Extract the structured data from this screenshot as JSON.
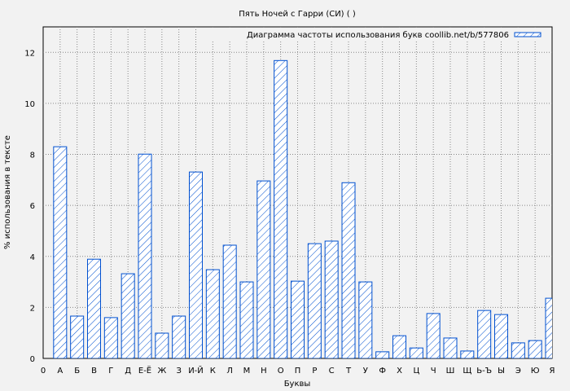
{
  "chart_data": {
    "type": "bar",
    "title": "Пять Ночей с Гарри (СИ) ( )",
    "xlabel": "Буквы",
    "ylabel": "% использования в тексте",
    "legend": {
      "label": "Диаграмма частоты использования букв coollib.net/b/577806",
      "position": "top-right"
    },
    "x_ticks": [
      "0",
      "А",
      "Б",
      "В",
      "Г",
      "Д",
      "Е-Ё",
      "Ж",
      "З",
      "И-Й",
      "К",
      "Л",
      "М",
      "Н",
      "О",
      "П",
      "Р",
      "С",
      "Т",
      "У",
      "Ф",
      "Х",
      "Ц",
      "Ч",
      "Ш",
      "Щ",
      "Ь-Ъ",
      "Ы",
      "Э",
      "Ю",
      "Я"
    ],
    "categories": [
      "А",
      "Б",
      "В",
      "Г",
      "Д",
      "Е-Ё",
      "Ж",
      "З",
      "И-Й",
      "К",
      "Л",
      "М",
      "Н",
      "О",
      "П",
      "Р",
      "С",
      "Т",
      "У",
      "Ф",
      "Х",
      "Ц",
      "Ч",
      "Ш",
      "Щ",
      "Ь-Ъ",
      "Ы",
      "Э",
      "Ю",
      "Я"
    ],
    "values": [
      8.3,
      1.66,
      3.89,
      1.6,
      3.32,
      8.01,
      0.99,
      1.66,
      7.31,
      3.48,
      4.44,
      3.0,
      6.96,
      11.68,
      3.03,
      4.5,
      4.6,
      6.89,
      3.0,
      0.26,
      0.89,
      0.41,
      1.76,
      0.8,
      0.29,
      1.88,
      1.72,
      0.61,
      0.7,
      2.36
    ],
    "y_ticks": [
      "0",
      "2",
      "4",
      "6",
      "8",
      "10",
      "12"
    ],
    "ylim": [
      0,
      13
    ],
    "grid": true,
    "bar_color": "#0050d0",
    "background": "#f2f2f2"
  }
}
